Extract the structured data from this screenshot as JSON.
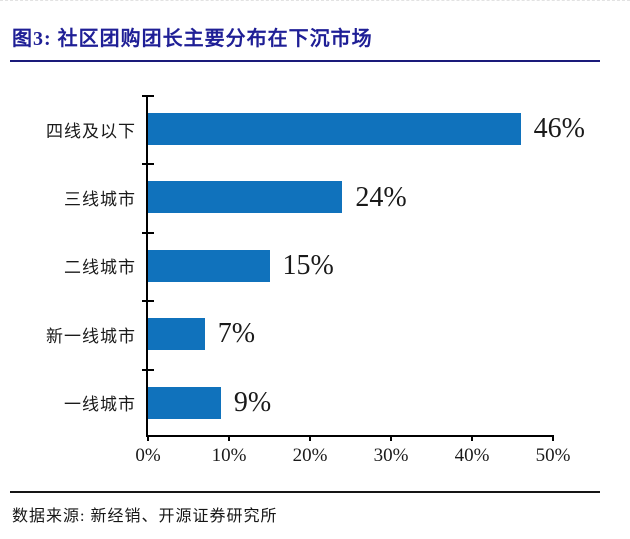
{
  "page": {
    "title": "图3: 社区团购团长主要分布在下沉市场",
    "source": "数据来源: 新经销、开源证券研究所"
  },
  "colors": {
    "title_text": "#1f1f96",
    "title_rule": "#1a1a7a",
    "bar": "#1072bc",
    "axis": "#000000"
  },
  "chart_data": {
    "type": "bar",
    "orientation": "horizontal",
    "title": "社区团购团长主要分布在下沉市场",
    "categories": [
      "四线及以下",
      "三线城市",
      "二线城市",
      "新一线城市",
      "一线城市"
    ],
    "values": [
      46,
      24,
      15,
      7,
      9
    ],
    "data_labels": [
      "46%",
      "24%",
      "15%",
      "7%",
      "9%"
    ],
    "xlim": [
      0,
      50
    ],
    "x_ticks": [
      "0%",
      "10%",
      "20%",
      "30%",
      "40%",
      "50%"
    ],
    "xlabel": "",
    "ylabel": "",
    "grid": "off",
    "legend": "none"
  }
}
